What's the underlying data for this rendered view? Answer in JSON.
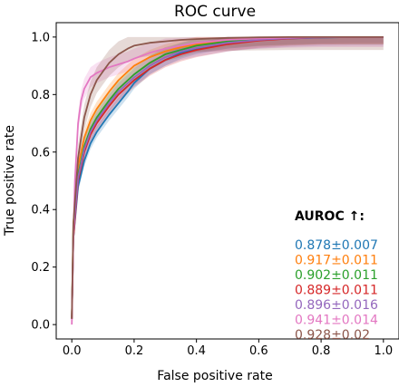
{
  "chart_data": {
    "type": "line",
    "title": "ROC curve",
    "xlabel": "False positive rate",
    "ylabel": "True positive rate",
    "xlim": [
      -0.05,
      1.05
    ],
    "ylim": [
      -0.05,
      1.05
    ],
    "xticks": [
      "0.0",
      "0.2",
      "0.4",
      "0.6",
      "0.8",
      "1.0"
    ],
    "yticks": [
      "0.0",
      "0.2",
      "0.4",
      "0.6",
      "0.8",
      "1.0"
    ],
    "grid": false,
    "legend": {
      "title": "AUROC ↑:",
      "placement": "lower-right"
    },
    "series": [
      {
        "label": "0.878±0.007",
        "color": "#1f77b4",
        "band": 0.02,
        "x": [
          0,
          0.005,
          0.02,
          0.04,
          0.06,
          0.08,
          0.1,
          0.12,
          0.15,
          0.18,
          0.2,
          0.25,
          0.3,
          0.35,
          0.4,
          0.5,
          0.6,
          0.7,
          0.8,
          0.9,
          1.0
        ],
        "y": [
          0.02,
          0.3,
          0.48,
          0.57,
          0.63,
          0.67,
          0.7,
          0.73,
          0.77,
          0.81,
          0.84,
          0.89,
          0.92,
          0.945,
          0.96,
          0.98,
          0.99,
          0.995,
          0.998,
          1.0,
          1.0
        ]
      },
      {
        "label": "0.917±0.011",
        "color": "#ff7f0e",
        "band": 0.025,
        "x": [
          0,
          0.005,
          0.02,
          0.04,
          0.06,
          0.08,
          0.1,
          0.12,
          0.15,
          0.18,
          0.2,
          0.25,
          0.3,
          0.35,
          0.4,
          0.5,
          0.6,
          0.7,
          0.8,
          0.9,
          1.0
        ],
        "y": [
          0.02,
          0.35,
          0.55,
          0.65,
          0.71,
          0.75,
          0.78,
          0.81,
          0.85,
          0.88,
          0.9,
          0.93,
          0.95,
          0.965,
          0.975,
          0.99,
          0.995,
          0.998,
          1.0,
          1.0,
          1.0
        ]
      },
      {
        "label": "0.902±0.011",
        "color": "#2ca02c",
        "band": 0.025,
        "x": [
          0,
          0.005,
          0.02,
          0.04,
          0.06,
          0.08,
          0.1,
          0.12,
          0.15,
          0.18,
          0.2,
          0.25,
          0.3,
          0.35,
          0.4,
          0.5,
          0.6,
          0.7,
          0.8,
          0.9,
          1.0
        ],
        "y": [
          0.02,
          0.33,
          0.52,
          0.62,
          0.68,
          0.72,
          0.75,
          0.78,
          0.82,
          0.85,
          0.87,
          0.91,
          0.94,
          0.955,
          0.97,
          0.985,
          0.993,
          0.997,
          1.0,
          1.0,
          1.0
        ]
      },
      {
        "label": "0.889±0.011",
        "color": "#d62728",
        "band": 0.025,
        "x": [
          0,
          0.005,
          0.02,
          0.04,
          0.06,
          0.08,
          0.1,
          0.12,
          0.15,
          0.18,
          0.2,
          0.25,
          0.3,
          0.35,
          0.4,
          0.5,
          0.6,
          0.7,
          0.8,
          0.9,
          1.0
        ],
        "y": [
          0.02,
          0.3,
          0.5,
          0.6,
          0.66,
          0.7,
          0.73,
          0.76,
          0.8,
          0.83,
          0.85,
          0.89,
          0.92,
          0.94,
          0.955,
          0.975,
          0.988,
          0.995,
          0.999,
          1.0,
          1.0
        ]
      },
      {
        "label": "0.896±0.016",
        "color": "#9467bd",
        "band": 0.03,
        "x": [
          0,
          0.005,
          0.02,
          0.04,
          0.06,
          0.08,
          0.1,
          0.12,
          0.15,
          0.18,
          0.2,
          0.25,
          0.3,
          0.35,
          0.4,
          0.5,
          0.6,
          0.7,
          0.8,
          0.9,
          1.0
        ],
        "y": [
          0.02,
          0.32,
          0.51,
          0.61,
          0.67,
          0.71,
          0.74,
          0.77,
          0.81,
          0.84,
          0.86,
          0.9,
          0.93,
          0.95,
          0.962,
          0.98,
          0.99,
          0.996,
          0.999,
          1.0,
          1.0
        ]
      },
      {
        "label": "0.941±0.014",
        "color": "#e377c2",
        "band": 0.035,
        "x": [
          0,
          0.005,
          0.01,
          0.02,
          0.03,
          0.04,
          0.06,
          0.08,
          0.1,
          0.12,
          0.15,
          0.18,
          0.2,
          0.25,
          0.3,
          0.4,
          0.5,
          0.6,
          0.7,
          0.8,
          1.0
        ],
        "y": [
          0.0,
          0.3,
          0.5,
          0.7,
          0.78,
          0.82,
          0.86,
          0.875,
          0.885,
          0.895,
          0.905,
          0.915,
          0.925,
          0.945,
          0.96,
          0.98,
          0.99,
          0.995,
          0.998,
          1.0,
          1.0
        ]
      },
      {
        "label": "0.928±0.02",
        "color": "#8c564b",
        "band": 0.045,
        "x": [
          0,
          0.005,
          0.02,
          0.04,
          0.06,
          0.08,
          0.1,
          0.12,
          0.15,
          0.18,
          0.2,
          0.25,
          0.3,
          0.35,
          0.4,
          0.5,
          0.6,
          0.7,
          0.8,
          0.9,
          1.0
        ],
        "y": [
          0.02,
          0.35,
          0.58,
          0.72,
          0.8,
          0.85,
          0.88,
          0.91,
          0.94,
          0.96,
          0.97,
          0.98,
          0.985,
          0.99,
          0.993,
          0.997,
          0.999,
          1.0,
          1.0,
          1.0,
          1.0
        ]
      }
    ]
  }
}
